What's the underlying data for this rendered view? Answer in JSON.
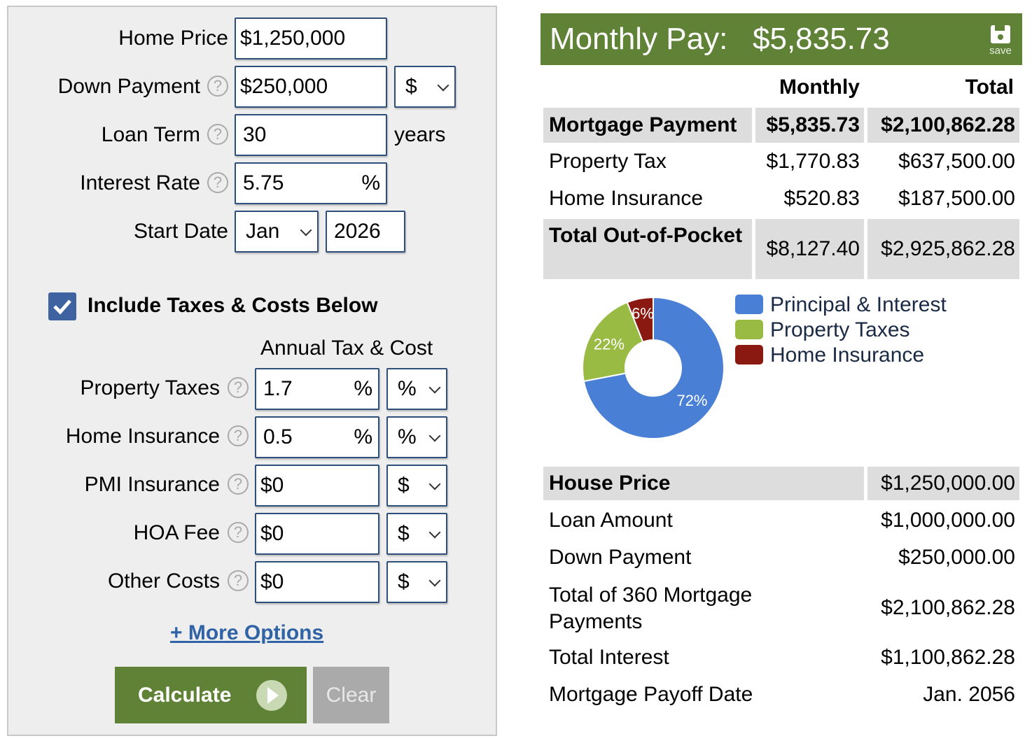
{
  "form": {
    "home_price": {
      "label": "Home Price",
      "value": "$1,250,000"
    },
    "down_payment": {
      "label": "Down Payment",
      "value": "$250,000",
      "unit": "$"
    },
    "loan_term": {
      "label": "Loan Term",
      "value": "30",
      "suffix": "years"
    },
    "interest_rate": {
      "label": "Interest Rate",
      "value": "5.75",
      "suffix": "%"
    },
    "start_date": {
      "label": "Start Date",
      "month": "Jan",
      "year": "2026"
    },
    "include_taxes": {
      "label": "Include Taxes & Costs Below",
      "checked": true
    },
    "annual_header": "Annual Tax & Cost",
    "costs": [
      {
        "label": "Property Taxes",
        "value": "1.7",
        "suffix": "%",
        "unit": "%"
      },
      {
        "label": "Home Insurance",
        "value": "0.5",
        "suffix": "%",
        "unit": "%"
      },
      {
        "label": "PMI Insurance",
        "value": "$0",
        "suffix": "",
        "unit": "$"
      },
      {
        "label": "HOA Fee",
        "value": "$0",
        "suffix": "",
        "unit": "$"
      },
      {
        "label": "Other Costs",
        "value": "$0",
        "suffix": "",
        "unit": "$"
      }
    ],
    "help_glyph": "?",
    "more_options": "+ More Options",
    "calculate": "Calculate",
    "clear": "Clear"
  },
  "results": {
    "title": "Monthly Pay:",
    "amount": "$5,835.73",
    "save": "save",
    "col_monthly": "Monthly",
    "col_total": "Total",
    "rows": [
      {
        "label": "Mortgage Payment",
        "monthly": "$5,835.73",
        "total": "$2,100,862.28"
      },
      {
        "label": "Property Tax",
        "monthly": "$1,770.83",
        "total": "$637,500.00"
      },
      {
        "label": "Home Insurance",
        "monthly": "$520.83",
        "total": "$187,500.00"
      },
      {
        "label": "Total Out-of-Pocket",
        "monthly": "$8,127.40",
        "total": "$2,925,862.28"
      }
    ],
    "summary": [
      {
        "label": "House Price",
        "value": "$1,250,000.00"
      },
      {
        "label": "Loan Amount",
        "value": "$1,000,000.00"
      },
      {
        "label": "Down Payment",
        "value": "$250,000.00"
      },
      {
        "label": "Total of 360 Mortgage Payments",
        "value": "$2,100,862.28"
      },
      {
        "label": "Total Interest",
        "value": "$1,100,862.28"
      },
      {
        "label": "Mortgage Payoff Date",
        "value": "Jan. 2056"
      }
    ]
  },
  "colors": {
    "accent": "#5f8236",
    "link": "#2f63a5",
    "checkbox": "#3e63a0"
  },
  "chart_data": {
    "type": "pie",
    "donut": true,
    "categories": [
      "Principal & Interest",
      "Property Taxes",
      "Home Insurance"
    ],
    "values": [
      72,
      22,
      6
    ],
    "labels": [
      "72%",
      "22%",
      "6%"
    ],
    "colors": [
      "#4a7fd6",
      "#99bb44",
      "#8a1912"
    ],
    "legend": "right"
  }
}
